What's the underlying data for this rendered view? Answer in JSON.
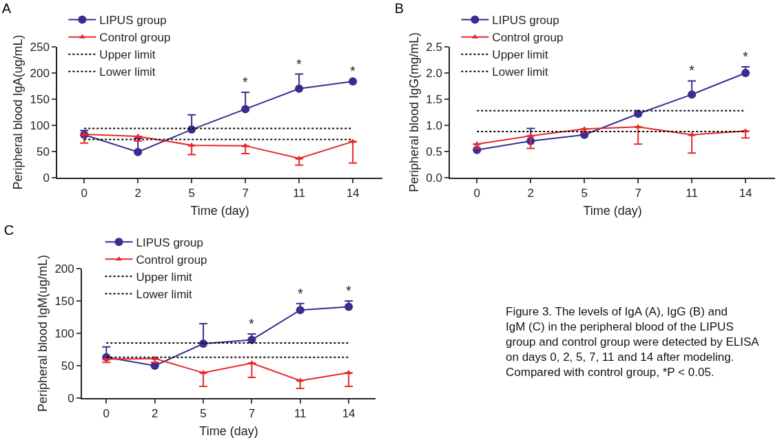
{
  "chart_data": [
    {
      "type": "line",
      "title": "A",
      "xlabel": "Time (day)",
      "ylabel": "Peripheral blood IgA(ug/mL)",
      "categories": [
        "0",
        "2",
        "5",
        "7",
        "11",
        "14"
      ],
      "ylim": [
        0,
        250
      ],
      "yticks": [
        0,
        50,
        100,
        150,
        200,
        250
      ],
      "grid": false,
      "legend": "top left",
      "series": [
        {
          "name": "LIPUS group",
          "color": "#3b2c8f",
          "marker": "circle",
          "values": [
            82,
            49,
            92,
            131,
            170,
            184
          ],
          "errors": [
            [
              82,
              90
            ],
            [
              49,
              75
            ],
            [
              92,
              120
            ],
            [
              131,
              163
            ],
            [
              170,
              198
            ],
            null
          ]
        },
        {
          "name": "Control group",
          "color": "#e8282b",
          "marker": "triangle",
          "values": [
            83,
            79,
            62,
            61,
            37,
            69
          ],
          "errors": [
            [
              66,
              83
            ],
            [
              70,
              79
            ],
            [
              44,
              62
            ],
            [
              46,
              61
            ],
            [
              24,
              37
            ],
            [
              28,
              69
            ]
          ]
        }
      ],
      "ref_lines": [
        {
          "axis": "y",
          "value": 94,
          "label": "Upper limit",
          "color": "#000000",
          "line_style": "dotted"
        },
        {
          "axis": "y",
          "value": 73,
          "label": "Lower limit",
          "color": "#000000",
          "line_style": "dotted"
        }
      ],
      "annotations": [
        {
          "text": "*",
          "x": "7",
          "y": 131
        },
        {
          "text": "*",
          "x": "11",
          "y": 170
        },
        {
          "text": "*",
          "x": "14",
          "y": 184
        }
      ]
    },
    {
      "type": "line",
      "title": "B",
      "xlabel": "Time (day)",
      "ylabel": "Peripheral blood IgG(mg/mL)",
      "categories": [
        "0",
        "2",
        "5",
        "7",
        "11",
        "14"
      ],
      "ylim": [
        0,
        2.5
      ],
      "yticks": [
        {
          "value": 0,
          "label": "0.0"
        },
        0.5,
        {
          "value": 1,
          "label": "1.0"
        },
        1.5,
        {
          "value": 2,
          "label": "2.0"
        },
        2.5
      ],
      "grid": false,
      "legend": "top left",
      "series": [
        {
          "name": "LIPUS group",
          "color": "#3b2c8f",
          "marker": "circle",
          "values": [
            0.53,
            0.7,
            0.82,
            1.22,
            1.59,
            2.0
          ],
          "errors": [
            null,
            [
              0.7,
              0.94
            ],
            null,
            null,
            [
              1.59,
              1.85
            ],
            [
              2.0,
              2.12
            ]
          ]
        },
        {
          "name": "Control group",
          "color": "#e8282b",
          "marker": "triangle",
          "values": [
            0.64,
            0.8,
            0.93,
            0.97,
            0.82,
            0.89
          ],
          "errors": [
            [
              0.56,
              0.64
            ],
            [
              0.56,
              0.8
            ],
            [
              0.87,
              0.93
            ],
            [
              0.64,
              0.97
            ],
            [
              0.47,
              0.82
            ],
            [
              0.76,
              0.89
            ]
          ]
        }
      ],
      "ref_lines": [
        {
          "axis": "y",
          "value": 1.28,
          "label": "Upper limit",
          "color": "#000000",
          "line_style": "dotted"
        },
        {
          "axis": "y",
          "value": 0.88,
          "label": "Lower limit",
          "color": "#000000",
          "line_style": "dotted"
        }
      ],
      "annotations": [
        {
          "text": "*",
          "x": "11",
          "y": 1.59
        },
        {
          "text": "*",
          "x": "14",
          "y": 2.0
        }
      ]
    },
    {
      "type": "line",
      "title": "C",
      "xlabel": "Time (day)",
      "ylabel": "Peripheral blood IgM(ug/mL)",
      "categories": [
        "0",
        "2",
        "5",
        "7",
        "11",
        "14"
      ],
      "ylim": [
        0,
        200
      ],
      "yticks": [
        0,
        50,
        100,
        150,
        200
      ],
      "grid": false,
      "legend": "top left",
      "series": [
        {
          "name": "LIPUS group",
          "color": "#3b2c8f",
          "marker": "circle",
          "values": [
            63,
            50,
            84,
            90,
            136,
            141
          ],
          "errors": [
            [
              63,
              79
            ],
            null,
            [
              84,
              115
            ],
            [
              90,
              99
            ],
            [
              136,
              146
            ],
            [
              141,
              150
            ]
          ]
        },
        {
          "name": "Control group",
          "color": "#e8282b",
          "marker": "triangle",
          "values": [
            60,
            61,
            39,
            54,
            27,
            39
          ],
          "errors": [
            [
              55,
              60
            ],
            [
              55,
              61
            ],
            [
              18,
              39
            ],
            [
              32,
              54
            ],
            [
              15,
              27
            ],
            [
              18,
              39
            ]
          ]
        }
      ],
      "ref_lines": [
        {
          "axis": "y",
          "value": 85,
          "label": "Upper limit",
          "color": "#000000",
          "line_style": "dotted"
        },
        {
          "axis": "y",
          "value": 63,
          "label": "Lower limit",
          "color": "#000000",
          "line_style": "dotted"
        }
      ],
      "annotations": [
        {
          "text": "*",
          "x": "7",
          "y": 90
        },
        {
          "text": "*",
          "x": "11",
          "y": 136
        },
        {
          "text": "*",
          "x": "14",
          "y": 141
        },
        "Figure 3. The levels of IgA (A), IgG (B) and IgM (C) in the peripheral blood of the LIPUS group and control group were detected by ELISA on days 0, 2, 5, 7, 11 and 14 after modeling. Compared with control group, *P < 0.05."
      ]
    }
  ]
}
